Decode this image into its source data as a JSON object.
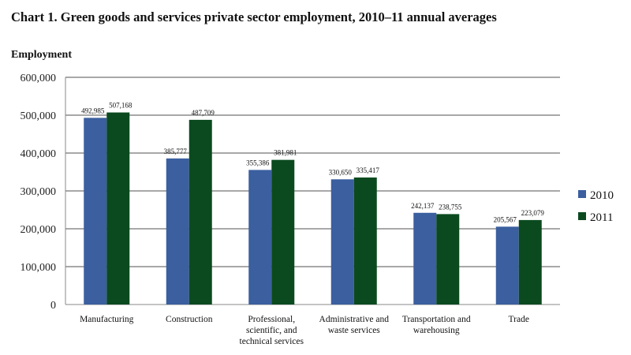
{
  "chart_data": {
    "type": "bar",
    "title": "Chart 1. Green goods and services private sector employment, 2010–11 annual averages",
    "xlabel": "",
    "ylabel": "Employment",
    "ylim": [
      0,
      600000
    ],
    "yticks": [
      0,
      100000,
      200000,
      300000,
      400000,
      500000,
      600000
    ],
    "ytick_labels": [
      "0",
      "100,000",
      "200,000",
      "300,000",
      "400,000",
      "500,000",
      "600,000"
    ],
    "grid": true,
    "legend": "right",
    "categories": [
      [
        "Manufacturing"
      ],
      [
        "Construction"
      ],
      [
        "Professional,",
        "scientific, and",
        "technical services"
      ],
      [
        "Administrative and",
        "waste services"
      ],
      [
        "Transportation and",
        "warehousing"
      ],
      [
        "Trade"
      ]
    ],
    "series": [
      {
        "name": "2010",
        "color": "#3b5f9f",
        "values": [
          492985,
          385777,
          355386,
          330650,
          242137,
          205567
        ],
        "labels": [
          "492,985",
          "385,777",
          "355,386",
          "330,650",
          "242,137",
          "205,567"
        ]
      },
      {
        "name": "2011",
        "color": "#0b4a1f",
        "values": [
          507168,
          487709,
          381981,
          335417,
          238755,
          223079
        ],
        "labels": [
          "507,168",
          "487,709",
          "381,981",
          "335,417",
          "238,755",
          "223,079"
        ]
      }
    ]
  }
}
